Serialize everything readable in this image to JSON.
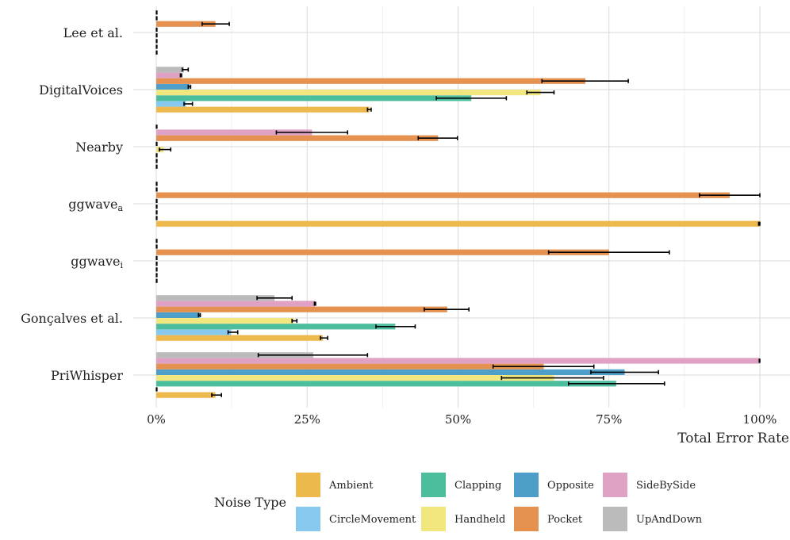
{
  "chart_data": {
    "type": "bar",
    "orientation": "horizontal",
    "title": "",
    "xlabel": "Total Error Rate",
    "ylabel": "",
    "xlim": [
      0,
      100
    ],
    "x_ticks": [
      "0%",
      "25%",
      "50%",
      "75%",
      "100%"
    ],
    "x_tick_values": [
      0,
      25,
      50,
      75,
      100
    ],
    "grid": true,
    "legend_title": "Noise Type",
    "legend_position": "bottom",
    "categories": [
      {
        "label": "Lee et al.",
        "sub": ""
      },
      {
        "label": "DigitalVoices",
        "sub": ""
      },
      {
        "label": "Nearby",
        "sub": ""
      },
      {
        "label": "ggwave",
        "sub": "a"
      },
      {
        "label": "ggwave",
        "sub": "i"
      },
      {
        "label": "Gonçalves et al.",
        "sub": ""
      },
      {
        "label": "PriWhisper",
        "sub": ""
      }
    ],
    "series": [
      {
        "name": "Ambient",
        "color": "#EDB94C",
        "values": [
          0,
          35.3,
          0,
          100,
          0,
          27.6,
          9.8
        ],
        "err_low": [
          null,
          35.0,
          null,
          99.8,
          null,
          27.2,
          9.2
        ],
        "err_high": [
          null,
          35.6,
          null,
          100,
          null,
          28.4,
          10.8
        ]
      },
      {
        "name": "CircleMovement",
        "color": "#86C8EE",
        "values": [
          0,
          4.9,
          0,
          0,
          0,
          12.4,
          0
        ],
        "err_low": [
          null,
          4.6,
          null,
          null,
          null,
          11.9,
          null
        ],
        "err_high": [
          null,
          6.0,
          null,
          null,
          null,
          13.5,
          null
        ]
      },
      {
        "name": "Clapping",
        "color": "#4DBE9D",
        "values": [
          0,
          52.2,
          0,
          0,
          0,
          39.6,
          76.2
        ],
        "err_low": [
          null,
          46.4,
          null,
          null,
          null,
          36.4,
          68.3
        ],
        "err_high": [
          null,
          58.0,
          null,
          null,
          null,
          42.9,
          84.2
        ]
      },
      {
        "name": "Handheld",
        "color": "#F2E67E",
        "values": [
          0,
          63.7,
          1.2,
          0,
          0,
          22.8,
          65.9
        ],
        "err_low": [
          null,
          61.4,
          0.5,
          null,
          null,
          22.5,
          57.2
        ],
        "err_high": [
          null,
          65.9,
          2.4,
          null,
          null,
          23.3,
          74.1
        ]
      },
      {
        "name": "Opposite",
        "color": "#4D9EC9",
        "values": [
          0,
          5.5,
          0,
          0,
          0,
          7.2,
          77.6
        ],
        "err_low": [
          null,
          5.3,
          null,
          null,
          null,
          7.0,
          72.0
        ],
        "err_high": [
          null,
          5.7,
          null,
          null,
          null,
          7.3,
          83.2
        ]
      },
      {
        "name": "Pocket",
        "color": "#E5914F",
        "values": [
          9.8,
          71.1,
          46.7,
          95.0,
          75.0,
          48.2,
          64.2
        ],
        "err_low": [
          7.6,
          63.9,
          43.4,
          90.0,
          65.0,
          44.4,
          55.8
        ],
        "err_high": [
          12.1,
          78.2,
          49.9,
          100,
          85.0,
          51.8,
          72.5
        ]
      },
      {
        "name": "SideBySide",
        "color": "#DFA2C5",
        "values": [
          0,
          4.0,
          25.8,
          0,
          0,
          26.3,
          100
        ],
        "err_low": [
          null,
          4.0,
          19.9,
          null,
          null,
          26.2,
          99.9
        ],
        "err_high": [
          null,
          4.2,
          31.7,
          null,
          null,
          26.4,
          100
        ]
      },
      {
        "name": "UpAndDown",
        "color": "#BBBBBB",
        "values": [
          0,
          4.6,
          0,
          0,
          0,
          19.6,
          26.0
        ],
        "err_low": [
          null,
          4.3,
          null,
          null,
          null,
          16.7,
          16.9
        ],
        "err_high": [
          null,
          5.3,
          null,
          null,
          null,
          22.5,
          35.0
        ]
      }
    ]
  }
}
